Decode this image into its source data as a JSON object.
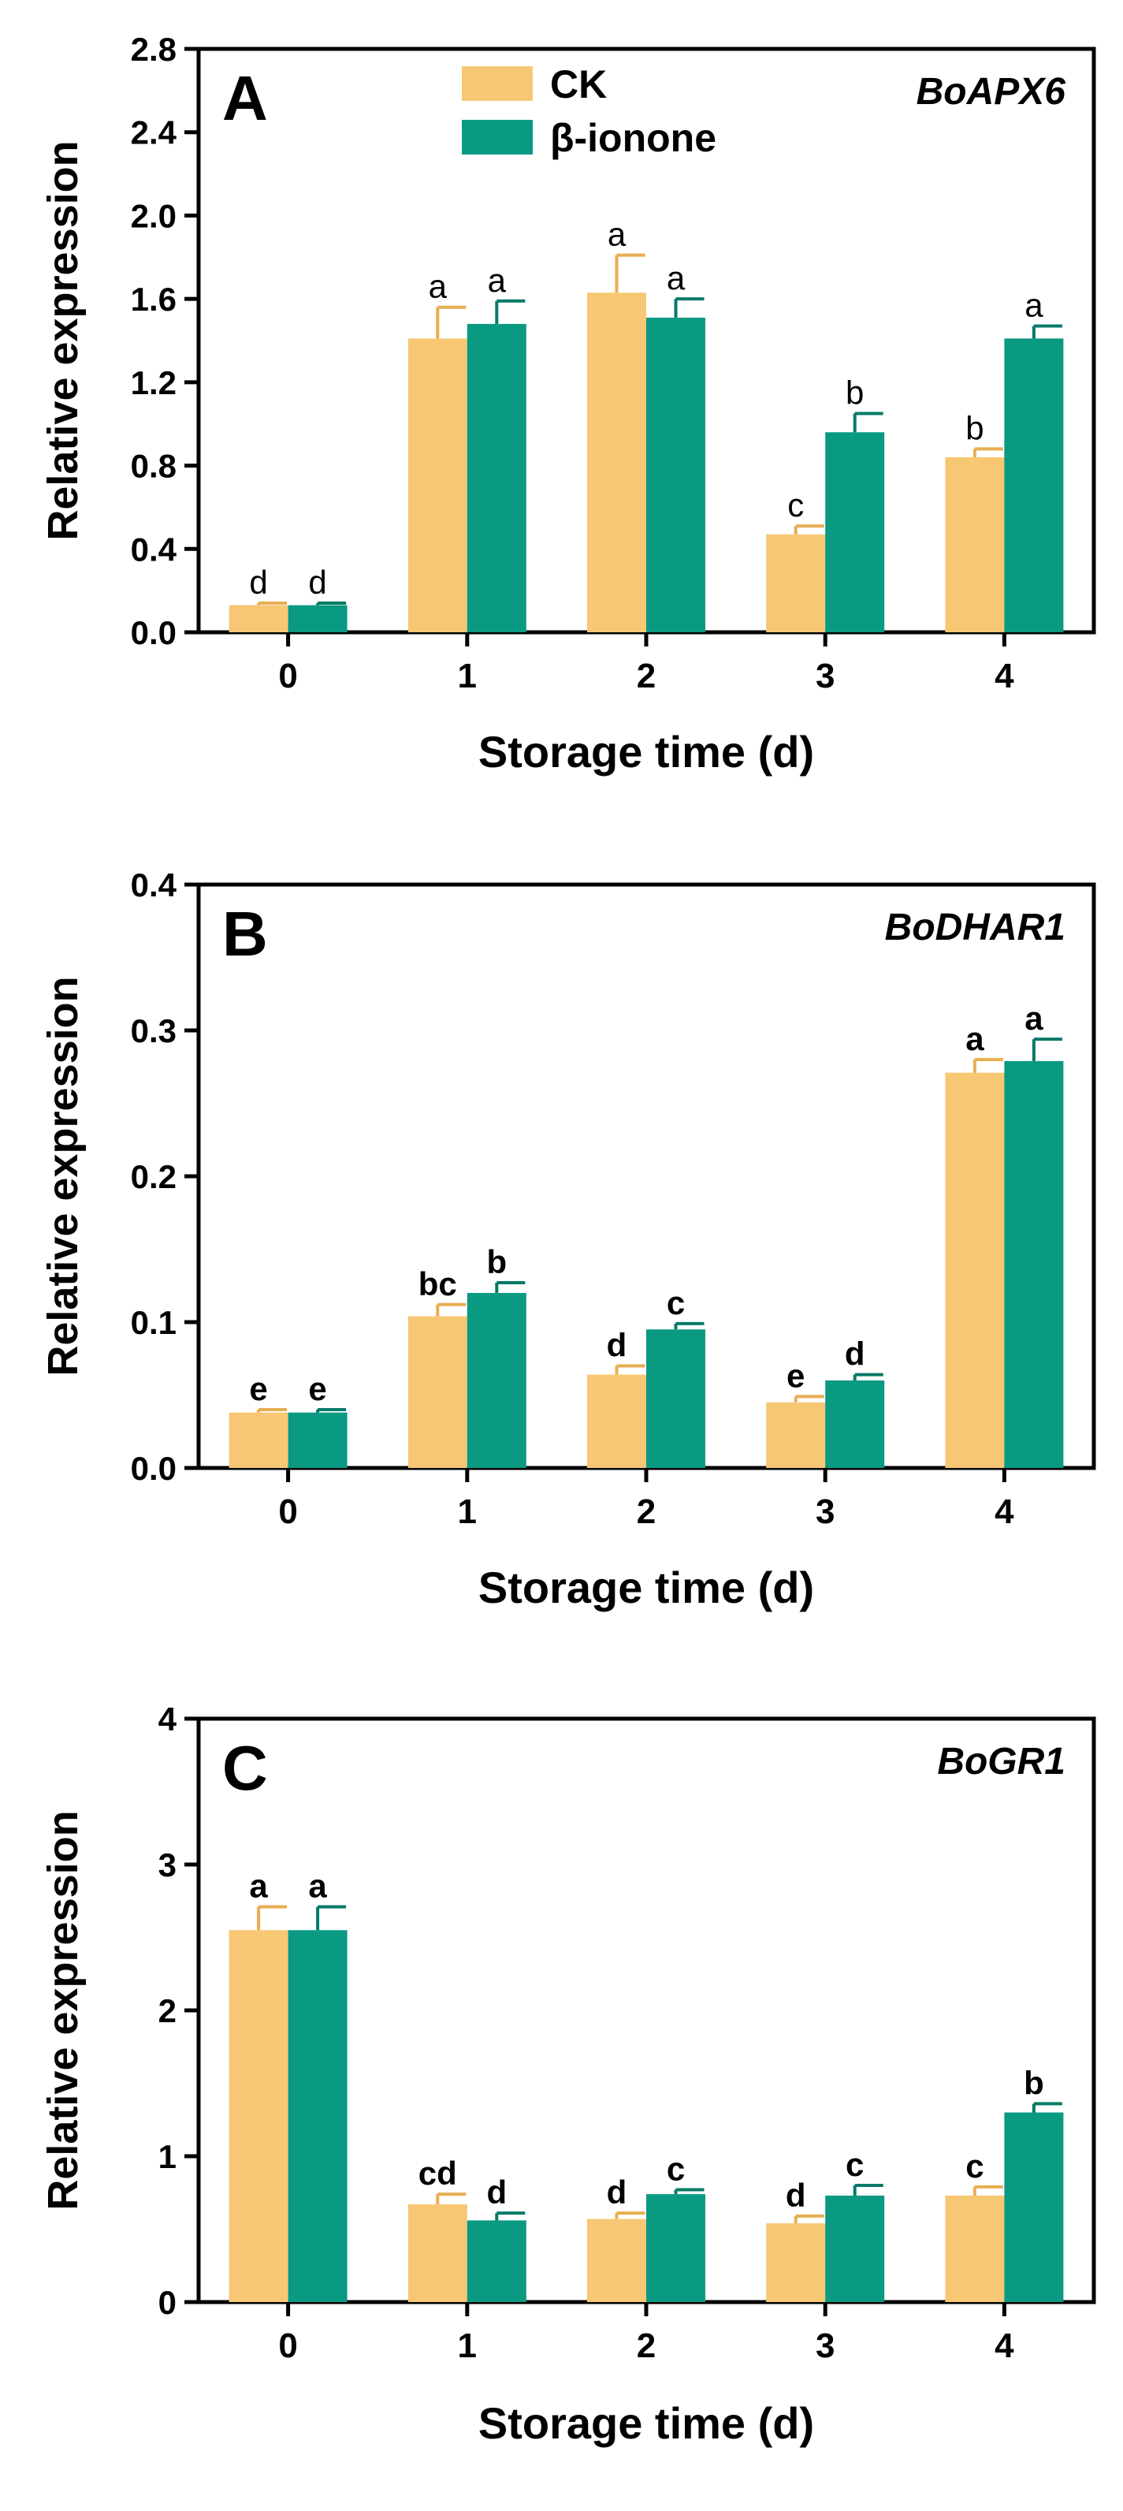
{
  "colors": {
    "ck": "#F7C774",
    "treated": "#0A9A82",
    "ck_error": "#E8AE52",
    "treated_error": "#067A67",
    "axis": "#000000"
  },
  "legend": [
    {
      "label": "CK",
      "color": "#F7C774"
    },
    {
      "label": "β-ionone",
      "color": "#0A9A82"
    }
  ],
  "chart_data": [
    {
      "type": "bar",
      "panel": "A",
      "gene": "BoAPX6",
      "xlabel": "Storage time (d)",
      "ylabel": "Relative expression",
      "categories": [
        "0",
        "1",
        "2",
        "3",
        "4"
      ],
      "ylim": [
        0,
        2.8
      ],
      "yticks": [
        "0.0",
        "0.4",
        "0.8",
        "1.2",
        "1.6",
        "2.0",
        "2.4",
        "2.8"
      ],
      "letter_style": "normal",
      "series": [
        {
          "name": "CK",
          "values": [
            0.13,
            1.41,
            1.63,
            0.47,
            0.84
          ],
          "errors": [
            0.01,
            0.15,
            0.18,
            0.04,
            0.04
          ],
          "letters": [
            "d",
            "a",
            "a",
            "c",
            "b"
          ]
        },
        {
          "name": "β-ionone",
          "values": [
            0.13,
            1.48,
            1.51,
            0.96,
            1.41
          ],
          "errors": [
            0.01,
            0.11,
            0.09,
            0.09,
            0.06
          ],
          "letters": [
            "d",
            "a",
            "a",
            "b",
            "a"
          ]
        }
      ]
    },
    {
      "type": "bar",
      "panel": "B",
      "gene": "BoDHAR1",
      "xlabel": "Storage time (d)",
      "ylabel": "Relative expression",
      "categories": [
        "0",
        "1",
        "2",
        "3",
        "4"
      ],
      "ylim": [
        0,
        0.4
      ],
      "yticks": [
        "0.0",
        "0.1",
        "0.2",
        "0.3",
        "0.4"
      ],
      "letter_style": "bold",
      "series": [
        {
          "name": "CK",
          "values": [
            0.038,
            0.104,
            0.064,
            0.045,
            0.271
          ],
          "errors": [
            0.002,
            0.008,
            0.006,
            0.004,
            0.009
          ],
          "letters": [
            "e",
            "bc",
            "d",
            "e",
            "a"
          ]
        },
        {
          "name": "β-ionone",
          "values": [
            0.038,
            0.12,
            0.095,
            0.06,
            0.279
          ],
          "errors": [
            0.002,
            0.007,
            0.004,
            0.004,
            0.015
          ],
          "letters": [
            "e",
            "b",
            "c",
            "d",
            "a"
          ]
        }
      ]
    },
    {
      "type": "bar",
      "panel": "C",
      "gene": "BoGR1",
      "xlabel": "Storage time (d)",
      "ylabel": "Relative expression",
      "categories": [
        "0",
        "1",
        "2",
        "3",
        "4"
      ],
      "ylim": [
        0,
        4
      ],
      "yticks": [
        "0",
        "1",
        "2",
        "3",
        "4"
      ],
      "letter_style": "bold",
      "series": [
        {
          "name": "CK",
          "values": [
            2.55,
            0.67,
            0.57,
            0.54,
            0.73
          ],
          "errors": [
            0.16,
            0.07,
            0.04,
            0.05,
            0.06
          ],
          "letters": [
            "a",
            "cd",
            "d",
            "d",
            "c"
          ]
        },
        {
          "name": "β-ionone",
          "values": [
            2.55,
            0.56,
            0.74,
            0.73,
            1.3
          ],
          "errors": [
            0.16,
            0.05,
            0.03,
            0.07,
            0.06
          ],
          "letters": [
            "a",
            "d",
            "c",
            "c",
            "b"
          ]
        }
      ]
    }
  ]
}
